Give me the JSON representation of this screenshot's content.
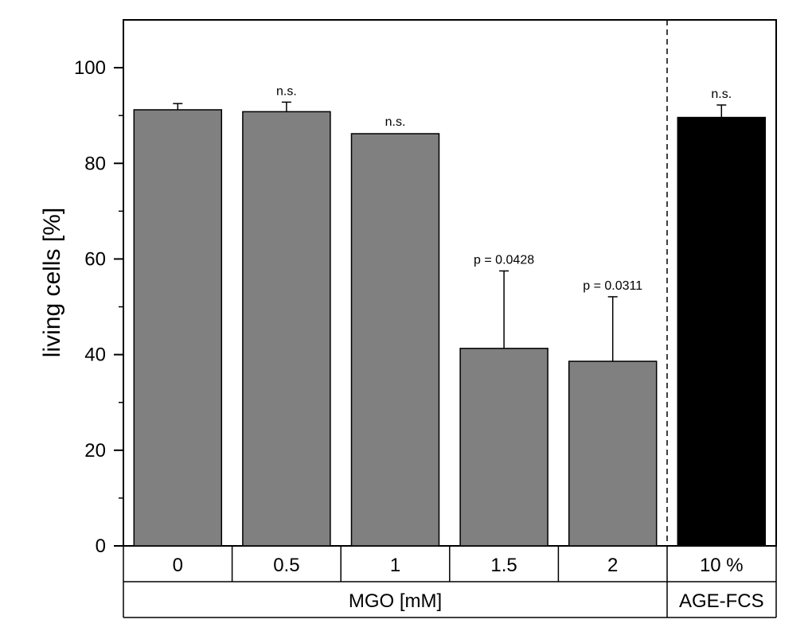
{
  "chart_data": {
    "type": "bar",
    "ylabel": "living cells [%]",
    "ylim": [
      0,
      110
    ],
    "yticks": [
      0,
      20,
      40,
      60,
      80,
      100
    ],
    "categories": [
      "0",
      "0.5",
      "1",
      "1.5",
      "2",
      "10 %"
    ],
    "groups": [
      {
        "label": "MGO [mM]",
        "categories": [
          "0",
          "0.5",
          "1",
          "1.5",
          "2"
        ]
      },
      {
        "label": "AGE-FCS",
        "categories": [
          "10 %"
        ]
      }
    ],
    "values": [
      91.2,
      90.8,
      86.2,
      41.3,
      38.6,
      89.6
    ],
    "errors": [
      1.3,
      2.0,
      0.0,
      16.2,
      13.5,
      2.6
    ],
    "annotations": [
      "",
      "n.s.",
      "n.s.",
      "p = 0.0428",
      "p = 0.0311",
      "n.s."
    ],
    "bar_colors": [
      "#808080",
      "#808080",
      "#808080",
      "#808080",
      "#808080",
      "#000000"
    ],
    "separator": "dashed line between the MGO group and the AGE-FCS group",
    "grid": false
  }
}
